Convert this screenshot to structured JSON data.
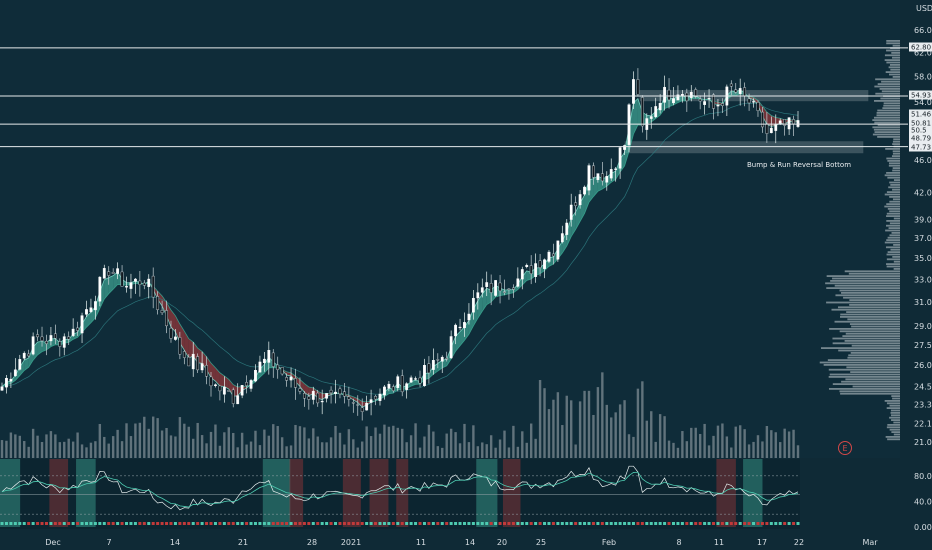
{
  "chart_data": {
    "type": "candlestick",
    "currency_label": "USD",
    "x_tick_labels": [
      "Dec",
      "7",
      "14",
      "21",
      "28",
      "2021",
      "11",
      "14",
      "20",
      "25",
      "Feb",
      "8",
      "11",
      "17",
      "22",
      "Mar"
    ],
    "y_tick_labels": [
      66.0,
      62.0,
      58.0,
      54.0,
      51.0,
      48.0,
      46.0,
      42.0,
      39.0,
      37.0,
      35.0,
      33.0,
      31.0,
      29.0,
      27.5,
      26.0,
      24.5,
      23.3,
      22.1,
      21.0
    ],
    "ylim": [
      21.0,
      66.0
    ],
    "y_scale": "log",
    "horizontal_levels": [
      62.8,
      54.93,
      50.81,
      47.73
    ],
    "price_labels": [
      "62.80",
      "54.93",
      "51.46",
      "50.81",
      "50.5",
      "48.79",
      "47.73"
    ],
    "annotation": "Bump & Run Reversal Bottom",
    "support_zones": [
      [
        54.2,
        55.8
      ],
      [
        46.9,
        48.4
      ]
    ],
    "close_anchors": [
      [
        0,
        24.5
      ],
      [
        4,
        26.5
      ],
      [
        8,
        28.0
      ],
      [
        12,
        27.8
      ],
      [
        16,
        28.5
      ],
      [
        20,
        31.0
      ],
      [
        24,
        34.0
      ],
      [
        28,
        32.5
      ],
      [
        32,
        33.0
      ],
      [
        36,
        30.0
      ],
      [
        40,
        27.0
      ],
      [
        44,
        26.0
      ],
      [
        48,
        24.5
      ],
      [
        52,
        23.8
      ],
      [
        56,
        25.5
      ],
      [
        60,
        26.5
      ],
      [
        64,
        25.0
      ],
      [
        68,
        24.0
      ],
      [
        72,
        23.8
      ],
      [
        76,
        23.5
      ],
      [
        80,
        23.2
      ],
      [
        84,
        24.0
      ],
      [
        88,
        24.5
      ],
      [
        92,
        25.0
      ],
      [
        96,
        25.5
      ],
      [
        100,
        27.0
      ],
      [
        104,
        30.0
      ],
      [
        108,
        32.0
      ],
      [
        112,
        32.5
      ],
      [
        116,
        33.0
      ],
      [
        120,
        34.5
      ],
      [
        124,
        36.0
      ],
      [
        128,
        40.0
      ],
      [
        132,
        45.0
      ],
      [
        136,
        44.0
      ],
      [
        140,
        48.0
      ],
      [
        142,
        58.0
      ],
      [
        144,
        50.0
      ],
      [
        148,
        55.0
      ],
      [
        152,
        56.0
      ],
      [
        156,
        55.0
      ],
      [
        160,
        53.0
      ],
      [
        164,
        56.0
      ],
      [
        168,
        54.0
      ],
      [
        172,
        49.5
      ],
      [
        176,
        50.5
      ]
    ],
    "indicator": {
      "ylim": [
        0,
        100
      ],
      "tick_labels": [
        "80.00",
        "40.00",
        "0.00"
      ],
      "overbought": 80,
      "oversold": 20,
      "mid_line_level": 51
    },
    "colors": {
      "background": "#0f2a36",
      "up": "#4ecbb1",
      "down": "#c23a3a",
      "level_line": "#e6eaec",
      "volume": "#7d8b93",
      "profile": "#c9d1d6"
    }
  },
  "icons": {
    "badge": "E"
  }
}
